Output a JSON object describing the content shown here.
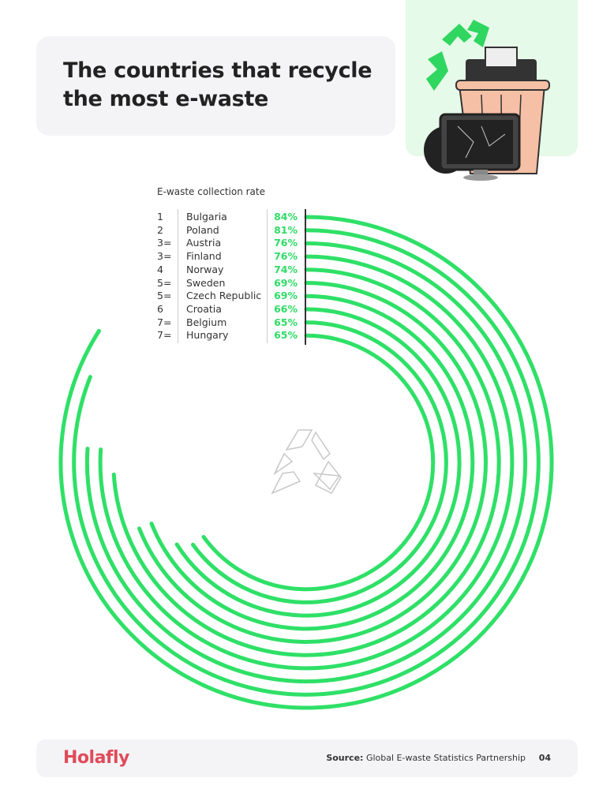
{
  "header": {
    "title": "The countries that recycle the most e-waste"
  },
  "chart_data": {
    "type": "radial-bar",
    "title": "E-waste collection rate",
    "unit": "%",
    "max": 100,
    "color": "#2fe067",
    "rows": [
      {
        "rank": "1",
        "country": "Bulgaria",
        "value": 84,
        "label": "84%"
      },
      {
        "rank": "2",
        "country": "Poland",
        "value": 81,
        "label": "81%"
      },
      {
        "rank": "3=",
        "country": "Austria",
        "value": 76,
        "label": "76%"
      },
      {
        "rank": "3=",
        "country": "Finland",
        "value": 76,
        "label": "76%"
      },
      {
        "rank": "4",
        "country": "Norway",
        "value": 74,
        "label": "74%"
      },
      {
        "rank": "5=",
        "country": "Sweden",
        "value": 69,
        "label": "69%"
      },
      {
        "rank": "5=",
        "country": "Czech Republic",
        "value": 69,
        "label": "69%"
      },
      {
        "rank": "6",
        "country": "Croatia",
        "value": 66,
        "label": "66%"
      },
      {
        "rank": "7=",
        "country": "Belgium",
        "value": 65,
        "label": "65%"
      },
      {
        "rank": "7=",
        "country": "Hungary",
        "value": 65,
        "label": "65%"
      }
    ]
  },
  "footer": {
    "logo": "Holafly",
    "source_label": "Source:",
    "source": "Global E-waste Statistics Partnership",
    "page": "04"
  }
}
